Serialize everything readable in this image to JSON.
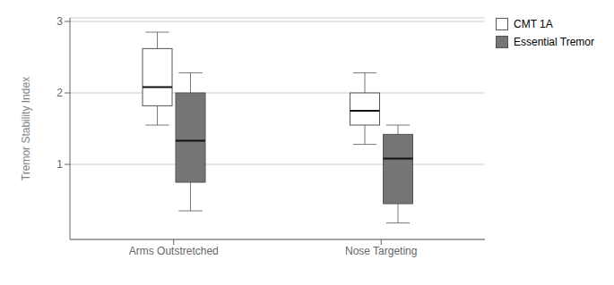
{
  "chart_data": {
    "type": "box",
    "title": "",
    "ylabel": "Tremor Stability Index",
    "categories": [
      "Arms Outstretched",
      "Nose Targeting"
    ],
    "ylim": [
      -0.05,
      3.05
    ],
    "yticks": [
      1,
      2,
      3
    ],
    "grid": true,
    "legend": "right",
    "series": [
      {
        "name": "CMT 1A",
        "color": "#ffffff",
        "values": [
          {
            "q1": 1.82,
            "median": 2.08,
            "q3": 2.62,
            "whisker_low": 1.55,
            "whisker_high": 2.85
          },
          {
            "q1": 1.55,
            "median": 1.75,
            "q3": 2.0,
            "whisker_low": 1.28,
            "whisker_high": 2.28
          }
        ]
      },
      {
        "name": "Essential Tremor",
        "color": "#757575",
        "values": [
          {
            "q1": 0.75,
            "median": 1.33,
            "q3": 2.0,
            "whisker_low": 0.35,
            "whisker_high": 2.28
          },
          {
            "q1": 0.45,
            "median": 1.08,
            "q3": 1.42,
            "whisker_low": 0.18,
            "whisker_high": 1.55
          }
        ]
      }
    ]
  }
}
